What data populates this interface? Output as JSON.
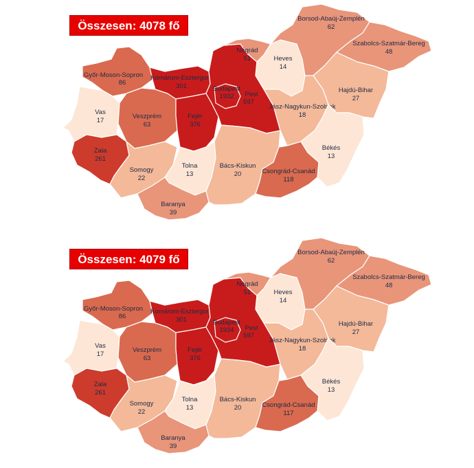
{
  "maps": [
    {
      "total": "Összesen: 4078 fő",
      "counties": {
        "borsod": {
          "name": "Borsod-Abaúj-Zemplén",
          "value": "62"
        },
        "szabolcs": {
          "name": "Szabolcs-Szatmár-Bereg",
          "value": "48"
        },
        "nograd": {
          "name": "Nógrád",
          "value": "51"
        },
        "heves": {
          "name": "Heves",
          "value": "14"
        },
        "gyor": {
          "name": "Győr-Moson-Sopron",
          "value": "86"
        },
        "komarom": {
          "name": "Komárom-Esztergom",
          "value": "301"
        },
        "budapest": {
          "name": "Budapest",
          "value": "1932"
        },
        "pest": {
          "name": "Pest",
          "value": "597"
        },
        "hajdu": {
          "name": "Hajdú-Bihar",
          "value": "27"
        },
        "vas": {
          "name": "Vas",
          "value": "17"
        },
        "veszprem": {
          "name": "Veszprém",
          "value": "63"
        },
        "fejer": {
          "name": "Fejér",
          "value": "376"
        },
        "jasz": {
          "name": "Jász-Nagykun-Szolnok",
          "value": "18"
        },
        "zala": {
          "name": "Zala",
          "value": "261"
        },
        "bekes": {
          "name": "Békés",
          "value": "13"
        },
        "somogy": {
          "name": "Somogy",
          "value": "22"
        },
        "tolna": {
          "name": "Tolna",
          "value": "13"
        },
        "bacs": {
          "name": "Bács-Kiskun",
          "value": "20"
        },
        "csongrad": {
          "name": "Csongrád-Csanád",
          "value": "118"
        },
        "baranya": {
          "name": "Baranya",
          "value": "39"
        }
      }
    },
    {
      "total": "Összesen: 4079 fő",
      "counties": {
        "borsod": {
          "name": "Borsod-Abaúj-Zemplén",
          "value": "62"
        },
        "szabolcs": {
          "name": "Szabolcs-Szatmár-Bereg",
          "value": "48"
        },
        "nograd": {
          "name": "Nógrád",
          "value": "51"
        },
        "heves": {
          "name": "Heves",
          "value": "14"
        },
        "gyor": {
          "name": "Győr-Moson-Sopron",
          "value": "86"
        },
        "komarom": {
          "name": "Komárom-Esztergom",
          "value": "301"
        },
        "budapest": {
          "name": "Budapest",
          "value": "1934"
        },
        "pest": {
          "name": "Pest",
          "value": "597"
        },
        "hajdu": {
          "name": "Hajdú-Bihar",
          "value": "27"
        },
        "vas": {
          "name": "Vas",
          "value": "17"
        },
        "veszprem": {
          "name": "Veszprém",
          "value": "63"
        },
        "fejer": {
          "name": "Fejér",
          "value": "376"
        },
        "jasz": {
          "name": "Jász-Nagykun-Szolnok",
          "value": "18"
        },
        "zala": {
          "name": "Zala",
          "value": "261"
        },
        "bekes": {
          "name": "Békés",
          "value": "13"
        },
        "somogy": {
          "name": "Somogy",
          "value": "22"
        },
        "tolna": {
          "name": "Tolna",
          "value": "13"
        },
        "bacs": {
          "name": "Bács-Kiskun",
          "value": "20"
        },
        "csongrad": {
          "name": "Csongrád-Csanád",
          "value": "117"
        },
        "baranya": {
          "name": "Baranya",
          "value": "39"
        }
      }
    }
  ],
  "colors": {
    "c1": "#fde6d5",
    "c2": "#f3b999",
    "c3": "#e8957a",
    "c4": "#d96a4f",
    "c5": "#cd3b2c",
    "c6": "#c81c1c",
    "badge": "#e60000"
  }
}
